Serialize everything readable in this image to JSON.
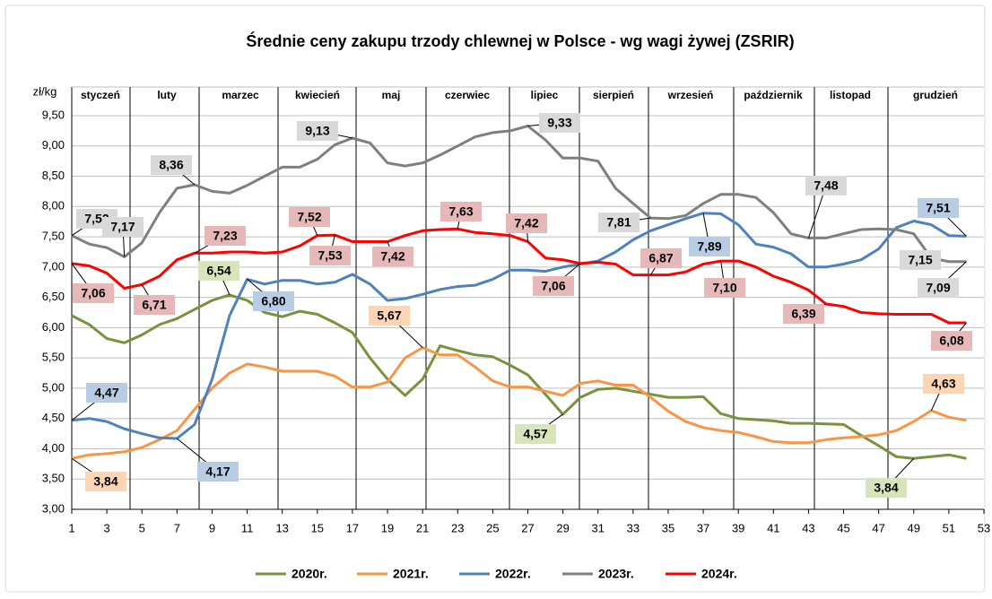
{
  "chart_data": {
    "type": "line",
    "title": "Średnie ceny zakupu trzody chlewnej w Polsce - wg wagi żywej (ZSRIR)",
    "y_label": "zł/kg",
    "month_labels": [
      "styczeń",
      "luty",
      "marzec",
      "kwiecień",
      "maj",
      "czerwiec",
      "lipiec",
      "sierpień",
      "wrzesień",
      "październik",
      "listopad",
      "grudzień"
    ],
    "x": [
      1,
      2,
      3,
      4,
      5,
      6,
      7,
      8,
      9,
      10,
      11,
      12,
      13,
      14,
      15,
      16,
      17,
      18,
      19,
      20,
      21,
      22,
      23,
      24,
      25,
      26,
      27,
      28,
      29,
      30,
      31,
      32,
      33,
      34,
      35,
      36,
      37,
      38,
      39,
      40,
      41,
      42,
      43,
      44,
      45,
      46,
      47,
      48,
      49,
      50,
      51,
      52
    ],
    "xlim": [
      1,
      53
    ],
    "xticks": [
      1,
      3,
      5,
      7,
      9,
      11,
      13,
      15,
      17,
      19,
      21,
      23,
      25,
      27,
      29,
      31,
      33,
      35,
      37,
      39,
      41,
      43,
      45,
      47,
      49,
      51,
      53
    ],
    "ylim": [
      3,
      9.5
    ],
    "yticks": [
      {
        "value": 3,
        "label": "3,00"
      },
      {
        "value": 3.5,
        "label": "3,50"
      },
      {
        "value": 4,
        "label": "4,00"
      },
      {
        "value": 4.5,
        "label": "4,50"
      },
      {
        "value": 5,
        "label": "5,00"
      },
      {
        "value": 5.5,
        "label": "5,50"
      },
      {
        "value": 6,
        "label": "6,00"
      },
      {
        "value": 6.5,
        "label": "6,50"
      },
      {
        "value": 7,
        "label": "7,00"
      },
      {
        "value": 7.5,
        "label": "7,50"
      },
      {
        "value": 8,
        "label": "8,00"
      },
      {
        "value": 8.5,
        "label": "8,50"
      },
      {
        "value": 9,
        "label": "9,00"
      },
      {
        "value": 9.5,
        "label": "9,50"
      }
    ],
    "grid": true,
    "legend": "bottom",
    "series": [
      {
        "name": "2020r.",
        "color": "#77933c",
        "values": [
          6.2,
          6.05,
          5.82,
          5.75,
          5.88,
          6.05,
          6.15,
          6.3,
          6.45,
          6.54,
          6.45,
          6.25,
          6.18,
          6.27,
          6.22,
          6.08,
          5.92,
          5.5,
          5.15,
          4.88,
          5.15,
          5.7,
          5.62,
          5.55,
          5.52,
          5.38,
          5.22,
          4.9,
          4.57,
          4.85,
          4.98,
          5.0,
          4.95,
          4.9,
          4.85,
          4.85,
          4.86,
          4.58,
          4.5,
          4.48,
          4.46,
          4.42,
          4.42,
          4.41,
          4.4,
          4.22,
          4.05,
          3.87,
          3.84,
          3.87,
          3.9,
          3.84
        ],
        "value_labels": [
          null,
          null,
          null,
          null,
          null,
          null,
          null,
          null,
          null,
          "6,54",
          null,
          null,
          null,
          null,
          null,
          null,
          null,
          null,
          null,
          null,
          null,
          null,
          null,
          null,
          null,
          null,
          null,
          null,
          "4,57",
          null,
          null,
          null,
          null,
          null,
          null,
          null,
          null,
          null,
          null,
          null,
          null,
          null,
          null,
          null,
          null,
          null,
          null,
          null,
          "3,84",
          null,
          null,
          null
        ]
      },
      {
        "name": "2021r.",
        "color": "#f79646",
        "values": [
          3.84,
          3.9,
          3.92,
          3.95,
          4.02,
          4.15,
          4.3,
          4.65,
          5.0,
          5.25,
          5.4,
          5.35,
          5.28,
          5.28,
          5.28,
          5.2,
          5.02,
          5.02,
          5.1,
          5.5,
          5.67,
          5.55,
          5.55,
          5.35,
          5.12,
          5.02,
          5.02,
          4.95,
          4.88,
          5.08,
          5.12,
          5.05,
          5.05,
          4.85,
          4.62,
          4.45,
          4.35,
          4.3,
          4.27,
          4.2,
          4.12,
          4.1,
          4.1,
          4.15,
          4.18,
          4.2,
          4.23,
          4.3,
          4.45,
          4.63,
          4.52,
          4.47
        ],
        "value_labels": [
          "3,84",
          null,
          null,
          null,
          null,
          null,
          null,
          null,
          null,
          null,
          null,
          null,
          null,
          null,
          null,
          null,
          null,
          null,
          null,
          null,
          "5,67",
          null,
          null,
          null,
          null,
          null,
          null,
          null,
          null,
          null,
          null,
          null,
          null,
          null,
          null,
          null,
          null,
          null,
          null,
          null,
          null,
          null,
          null,
          null,
          null,
          null,
          null,
          null,
          null,
          "4,63",
          null,
          null
        ]
      },
      {
        "name": "2022r.",
        "color": "#4f81bd",
        "values": [
          4.47,
          4.5,
          4.45,
          4.33,
          4.25,
          4.18,
          4.17,
          4.4,
          5.15,
          6.2,
          6.8,
          6.72,
          6.78,
          6.78,
          6.72,
          6.75,
          6.88,
          6.72,
          6.45,
          6.48,
          6.55,
          6.63,
          6.68,
          6.7,
          6.8,
          6.95,
          6.95,
          6.93,
          7.0,
          7.05,
          7.1,
          7.25,
          7.45,
          7.6,
          7.7,
          7.8,
          7.89,
          7.88,
          7.7,
          7.38,
          7.33,
          7.22,
          7.0,
          7.0,
          7.05,
          7.12,
          7.3,
          7.65,
          7.76,
          7.7,
          7.52,
          7.51
        ],
        "value_labels": [
          "4,47",
          null,
          null,
          null,
          null,
          null,
          "4,17",
          null,
          null,
          null,
          "6,80",
          null,
          null,
          null,
          null,
          null,
          null,
          null,
          null,
          null,
          null,
          null,
          null,
          null,
          null,
          null,
          null,
          null,
          null,
          null,
          null,
          null,
          null,
          null,
          null,
          null,
          "7,89",
          null,
          null,
          null,
          null,
          null,
          null,
          null,
          null,
          null,
          null,
          null,
          null,
          null,
          null,
          "7,51"
        ]
      },
      {
        "name": "2023r.",
        "color": "#7f7f7f",
        "values": [
          7.52,
          7.38,
          7.32,
          7.17,
          7.4,
          7.9,
          8.3,
          8.36,
          8.25,
          8.22,
          8.35,
          8.5,
          8.65,
          8.65,
          8.78,
          9.02,
          9.13,
          9.05,
          8.72,
          8.67,
          8.72,
          8.85,
          9.0,
          9.15,
          9.22,
          9.25,
          9.33,
          9.1,
          8.8,
          8.8,
          8.75,
          8.3,
          8.05,
          7.81,
          7.8,
          7.85,
          8.05,
          8.2,
          8.2,
          8.15,
          7.9,
          7.55,
          7.48,
          7.48,
          7.55,
          7.62,
          7.63,
          7.62,
          7.55,
          7.15,
          7.09,
          7.09
        ],
        "value_labels": [
          "7,52",
          null,
          null,
          "7,17",
          null,
          null,
          null,
          "8,36",
          null,
          null,
          null,
          null,
          null,
          null,
          null,
          null,
          "9,13",
          null,
          null,
          null,
          null,
          null,
          null,
          null,
          null,
          null,
          "9,33",
          null,
          null,
          null,
          null,
          null,
          null,
          "7,81",
          null,
          null,
          null,
          null,
          null,
          null,
          null,
          null,
          "7,48",
          null,
          null,
          null,
          null,
          null,
          null,
          "7,15",
          null,
          "7,09"
        ]
      },
      {
        "name": "2024r.",
        "color": "#ff0000",
        "values": [
          7.06,
          7.02,
          6.9,
          6.65,
          6.71,
          6.85,
          7.12,
          7.23,
          7.23,
          7.25,
          7.25,
          7.23,
          7.25,
          7.35,
          7.52,
          7.53,
          7.42,
          7.42,
          7.42,
          7.52,
          7.6,
          7.62,
          7.63,
          7.57,
          7.55,
          7.52,
          7.42,
          7.15,
          7.12,
          7.06,
          7.08,
          7.05,
          6.87,
          6.87,
          6.87,
          6.92,
          7.05,
          7.1,
          7.1,
          7.0,
          6.85,
          6.75,
          6.62,
          6.39,
          6.35,
          6.25,
          6.23,
          6.22,
          6.22,
          6.22,
          6.08,
          6.08
        ],
        "value_labels": [
          "7,06",
          null,
          null,
          null,
          "6,71",
          null,
          null,
          "7,23",
          null,
          null,
          null,
          null,
          null,
          null,
          "7,52",
          "7,53",
          null,
          null,
          "7,42",
          null,
          null,
          null,
          "7,63",
          null,
          null,
          null,
          "7,42",
          null,
          null,
          "7,06",
          null,
          null,
          null,
          "6,87",
          null,
          null,
          null,
          "7,10",
          null,
          null,
          null,
          null,
          null,
          "6,39",
          null,
          null,
          null,
          null,
          null,
          null,
          null,
          "6,08"
        ]
      }
    ]
  }
}
